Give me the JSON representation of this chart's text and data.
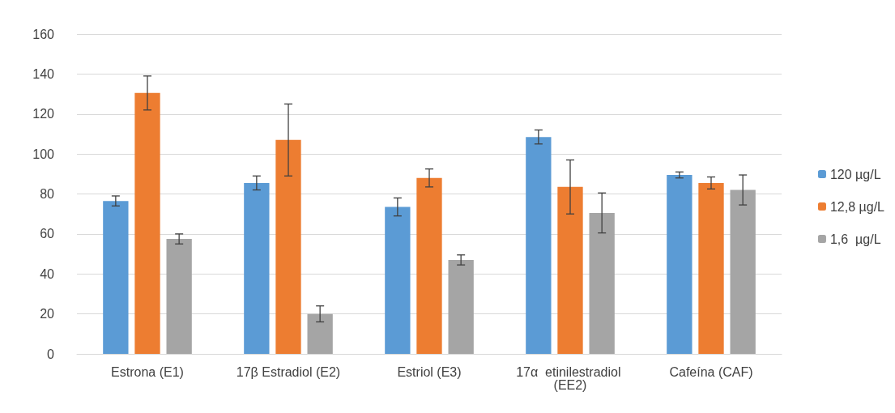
{
  "chart_data": {
    "type": "bar",
    "categories": [
      "Estrona (E1)",
      "17β Estradiol (E2)",
      "Estriol (E3)",
      "17α  etinilestradiol (EE2)",
      "Cafeína (CAF)"
    ],
    "series": [
      {
        "name": "120 µg/L",
        "color": "#5b9bd5",
        "values": [
          76.5,
          85.5,
          73.5,
          108.5,
          89.5
        ],
        "errors": [
          2.5,
          3.5,
          4.5,
          3.5,
          1.5
        ]
      },
      {
        "name": "12,8 µg/L",
        "color": "#ed7d31",
        "values": [
          130.5,
          107,
          88,
          83.5,
          85.5
        ],
        "errors": [
          8.5,
          18,
          4.5,
          13.5,
          3
        ]
      },
      {
        "name": "1,6  µg/L",
        "color": "#a5a5a5",
        "values": [
          57.5,
          20,
          47,
          70.5,
          82
        ],
        "errors": [
          2.5,
          4,
          2.5,
          10,
          7.5
        ]
      }
    ],
    "ylim": [
      0,
      160
    ],
    "yticks": [
      0,
      20,
      40,
      60,
      80,
      100,
      120,
      140,
      160
    ],
    "grid": "y",
    "legend": "right"
  }
}
